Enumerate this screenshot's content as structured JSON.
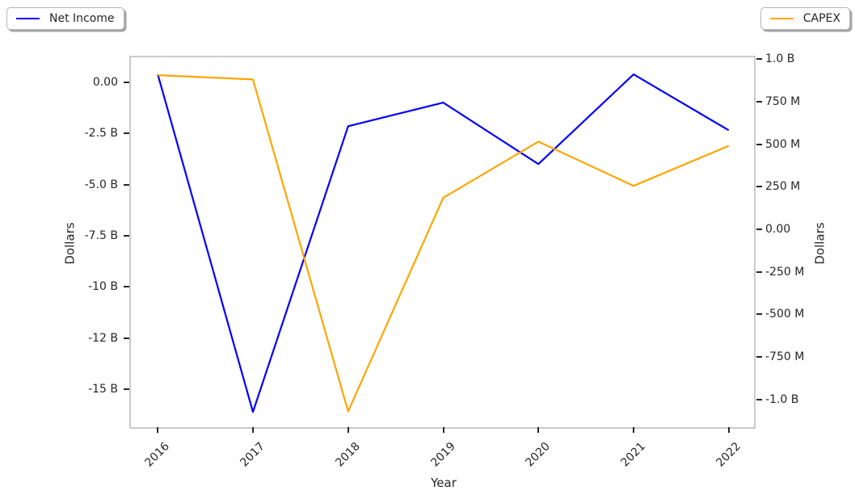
{
  "legend": {
    "net_income_label": "Net Income",
    "capex_label": "CAPEX"
  },
  "colors": {
    "net_income": "#0000ff",
    "capex": "#ffa500",
    "text": "#262626",
    "spine": "#cbcbcb"
  },
  "chart_data": {
    "type": "line",
    "title": "",
    "xlabel": "Year",
    "ylabel_left": "Dollars",
    "ylabel_right": "Dollars",
    "x": [
      2016,
      2017,
      2018,
      2019,
      2020,
      2021,
      2022
    ],
    "x_tick_labels": [
      "2016",
      "2017",
      "2018",
      "2019",
      "2020",
      "2021",
      "2022"
    ],
    "xlim": [
      2015.717,
      2022.283
    ],
    "grid": false,
    "legend_position": "outside upper-left and outside upper-right",
    "series": [
      {
        "name": "Net Income",
        "axis": "left",
        "color": "#0000ff",
        "units": "billions USD",
        "values": [
          0.37,
          -16.1,
          -2.15,
          -1.0,
          -4.0,
          0.38,
          -2.35
        ]
      },
      {
        "name": "CAPEX",
        "axis": "right",
        "color": "#ffa500",
        "units": "millions USD",
        "values": [
          905,
          880,
          -1070,
          185,
          515,
          255,
          490
        ]
      }
    ],
    "left_axis": {
      "units": "billions USD",
      "ylim": [
        -16.92,
        1.21
      ],
      "tick_values": [
        0,
        -2.5,
        -5,
        -7.5,
        -10,
        -12.5,
        -15
      ],
      "tick_labels": [
        "0.00",
        "-2.5 B",
        "-5.0 B",
        "-7.5 B",
        "-10 B",
        "-12 B",
        "-15 B"
      ]
    },
    "right_axis": {
      "units": "millions USD",
      "ylim": [
        -1172,
        1010
      ],
      "tick_values": [
        1000,
        750,
        500,
        250,
        0,
        -250,
        -500,
        -750,
        -1000
      ],
      "tick_labels": [
        "1.0 B",
        "750 M",
        "500 M",
        "250 M",
        "0.00",
        "-250 M",
        "-500 M",
        "-750 M",
        "-1.0 B"
      ]
    }
  }
}
